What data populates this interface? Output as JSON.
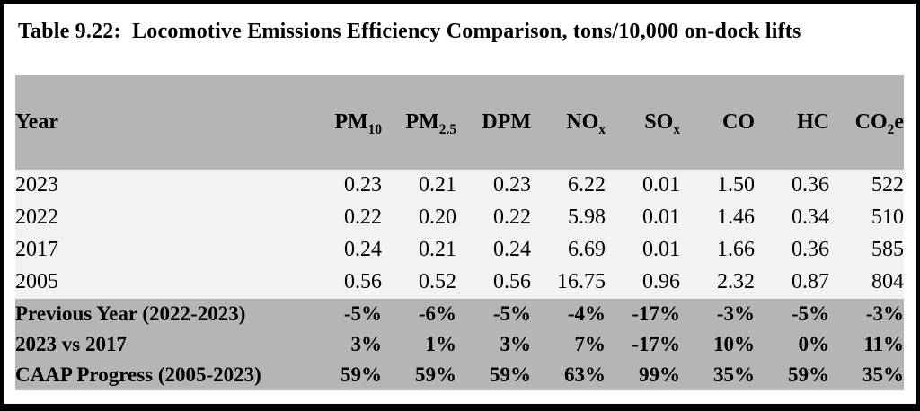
{
  "caption": {
    "text": "Table 9.22:  Locomotive Emissions Efficiency Comparison, tons/10,000 on-dock lifts"
  },
  "colors": {
    "frame_border": "#000000",
    "page_bg": "#ffffff",
    "header_bg": "#b5b5b5",
    "summary_bg": "#b5b5b5",
    "data_row_bg": "#f2f2f2",
    "text": "#000000"
  },
  "chart_data": {
    "type": "table",
    "title": "Table 9.22: Locomotive Emissions Efficiency Comparison, tons/10,000 on-dock lifts",
    "units": "tons/10,000 on-dock lifts",
    "columns": [
      {
        "id": "year",
        "main": "Year",
        "sub": "",
        "tail": ""
      },
      {
        "id": "pm10",
        "main": "PM",
        "sub": "10",
        "tail": ""
      },
      {
        "id": "pm2-5",
        "main": "PM",
        "sub": "2.5",
        "tail": ""
      },
      {
        "id": "dpm",
        "main": "DPM",
        "sub": "",
        "tail": ""
      },
      {
        "id": "nox",
        "main": "NO",
        "sub": "x",
        "tail": ""
      },
      {
        "id": "sox",
        "main": "SO",
        "sub": "x",
        "tail": ""
      },
      {
        "id": "co",
        "main": "CO",
        "sub": "",
        "tail": ""
      },
      {
        "id": "hc",
        "main": "HC",
        "sub": "",
        "tail": ""
      },
      {
        "id": "co2e",
        "main": "CO",
        "sub": "2",
        "tail": "e"
      }
    ],
    "data_rows": [
      {
        "label": "2023",
        "values": [
          "0.23",
          "0.21",
          "0.23",
          "6.22",
          "0.01",
          "1.50",
          "0.36",
          "522"
        ]
      },
      {
        "label": "2022",
        "values": [
          "0.22",
          "0.20",
          "0.22",
          "5.98",
          "0.01",
          "1.46",
          "0.34",
          "510"
        ]
      },
      {
        "label": "2017",
        "values": [
          "0.24",
          "0.21",
          "0.24",
          "6.69",
          "0.01",
          "1.66",
          "0.36",
          "585"
        ]
      },
      {
        "label": "2005",
        "values": [
          "0.56",
          "0.52",
          "0.56",
          "16.75",
          "0.96",
          "2.32",
          "0.87",
          "804"
        ]
      }
    ],
    "summary_rows": [
      {
        "label": "Previous Year (2022-2023)",
        "values": [
          "-5%",
          "-6%",
          "-5%",
          "-4%",
          "-17%",
          "-3%",
          "-5%",
          "-3%"
        ]
      },
      {
        "label": "2023 vs 2017",
        "values": [
          "3%",
          "1%",
          "3%",
          "7%",
          "-17%",
          "10%",
          "0%",
          "11%"
        ]
      },
      {
        "label": "CAAP Progress (2005-2023)",
        "values": [
          "59%",
          "59%",
          "59%",
          "63%",
          "99%",
          "35%",
          "59%",
          "35%"
        ]
      }
    ]
  }
}
